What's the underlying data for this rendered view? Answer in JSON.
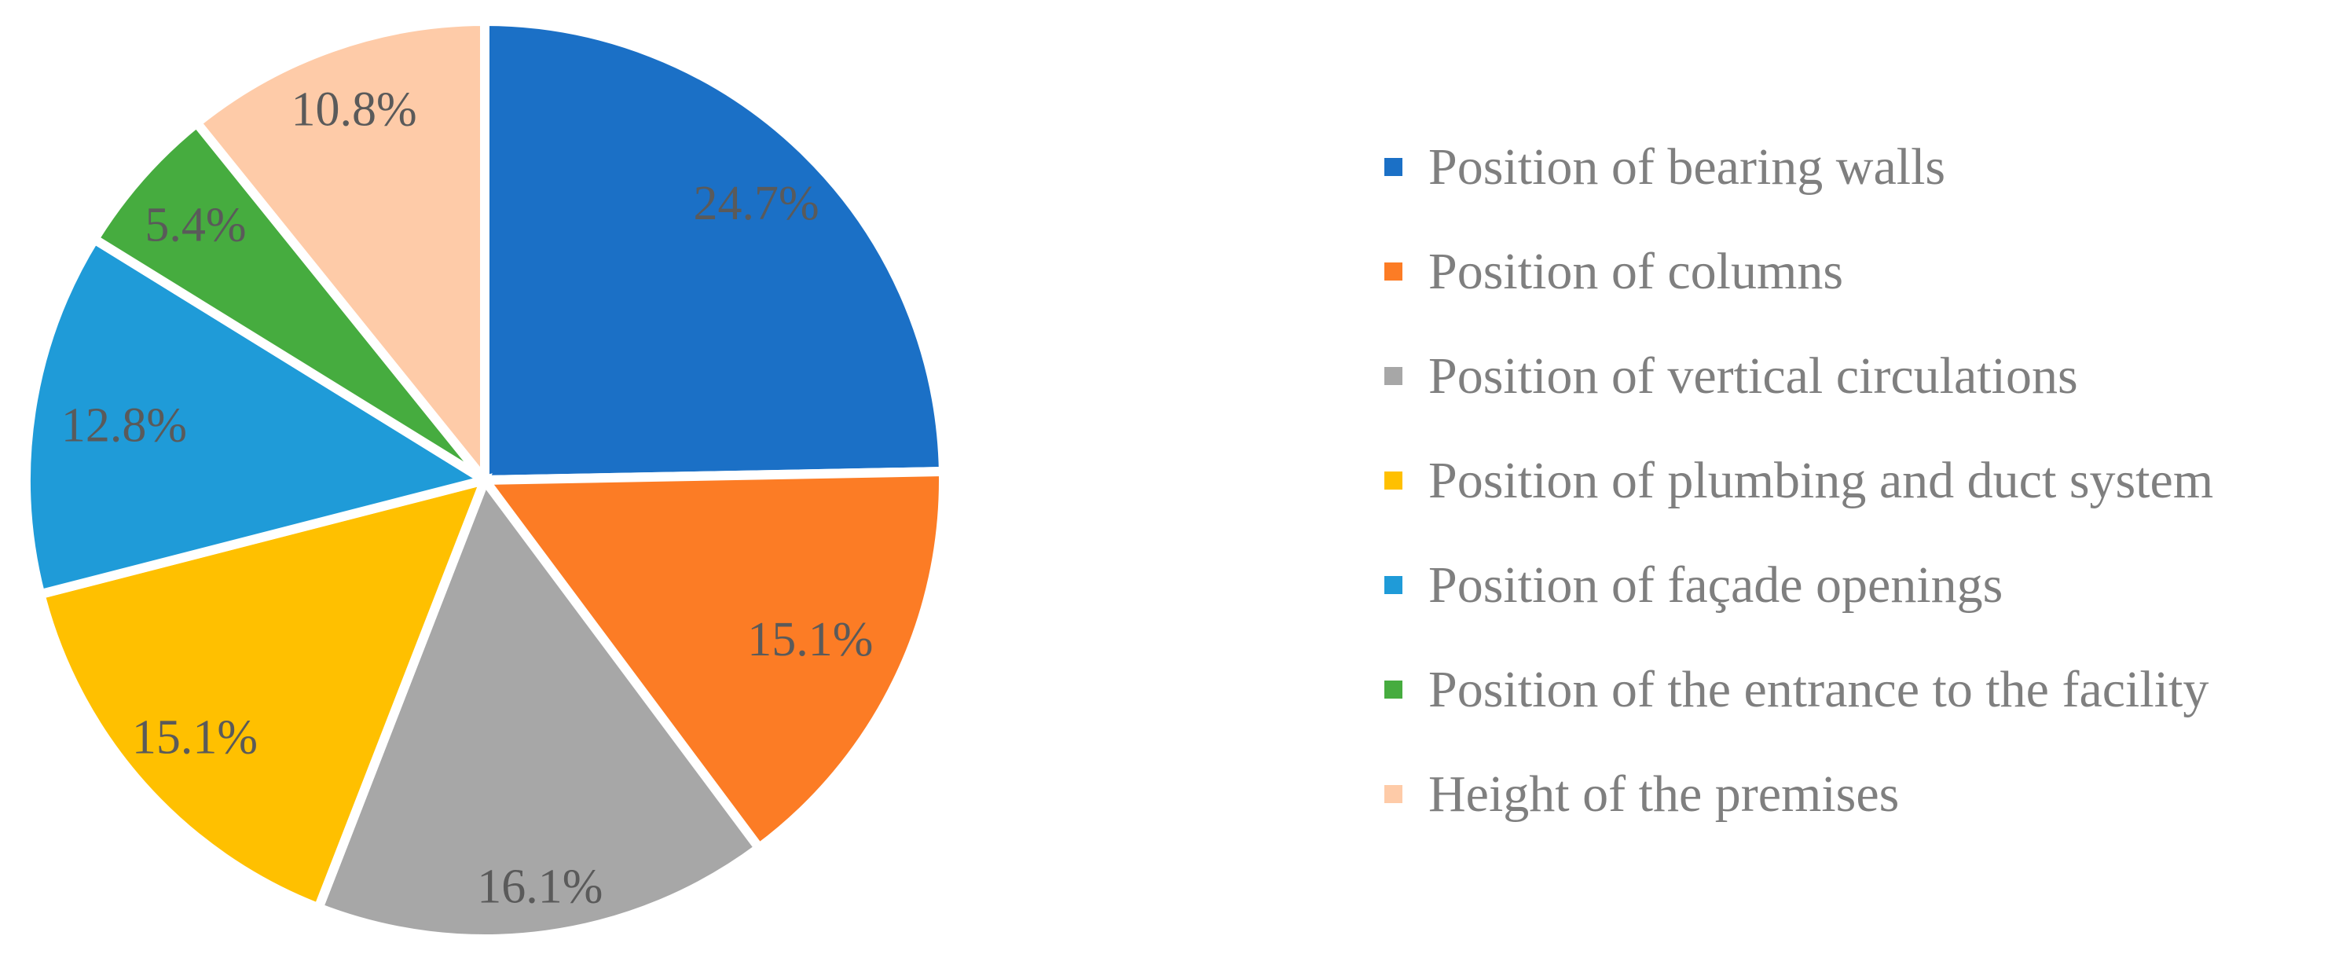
{
  "chart_data": {
    "type": "pie",
    "title": "",
    "slices": [
      {
        "label": "Position of bearing walls",
        "value": 24.7,
        "data_label": "24.7%",
        "color": "#1B70C6"
      },
      {
        "label": "Position of columns",
        "value": 15.1,
        "data_label": "15.1%",
        "color": "#FC7C25"
      },
      {
        "label": "Position of vertical circulations",
        "value": 16.1,
        "data_label": "16.1%",
        "color": "#A7A7A7"
      },
      {
        "label": "Position of plumbing and duct system",
        "value": 15.1,
        "data_label": "15.1%",
        "color": "#FFC000"
      },
      {
        "label": "Position of façade openings",
        "value": 12.8,
        "data_label": "12.8%",
        "color": "#1F9BD8"
      },
      {
        "label": "Position of the entrance to the facility",
        "value": 5.4,
        "data_label": "5.4%",
        "color": "#46AC3F"
      },
      {
        "label": "Height of the premises",
        "value": 10.8,
        "data_label": "10.8%",
        "color": "#FECBA8"
      }
    ],
    "start_angle_deg": 0,
    "direction": "clockwise",
    "slice_border_color": "#FFFFFF",
    "data_label_color": "#5A5A5A",
    "legend_position": "right",
    "legend_text_color": "#7F7F7F",
    "label_radius_fracs": [
      0.845,
      0.79,
      0.894,
      0.845,
      0.795,
      0.84,
      0.856
    ]
  }
}
